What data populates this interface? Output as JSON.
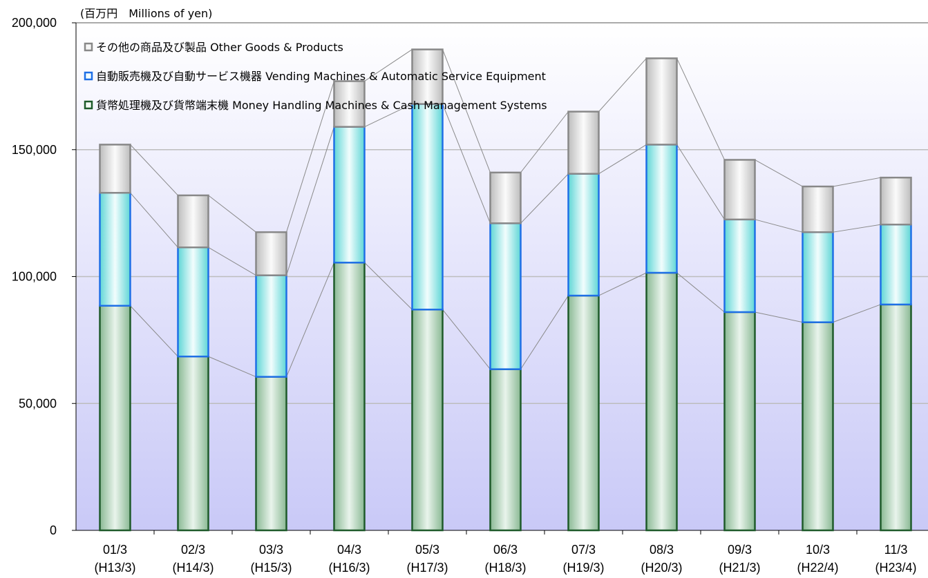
{
  "chart_data": {
    "type": "bar",
    "stacked": true,
    "unit_label": "(百万円　Millions of yen)",
    "categories": [
      [
        "01/3",
        "(H13/3)"
      ],
      [
        "02/3",
        "(H14/3)"
      ],
      [
        "03/3",
        "(H15/3)"
      ],
      [
        "04/3",
        "(H16/3)"
      ],
      [
        "05/3",
        "(H17/3)"
      ],
      [
        "06/3",
        "(H18/3)"
      ],
      [
        "07/3",
        "(H19/3)"
      ],
      [
        "08/3",
        "(H20/3)"
      ],
      [
        "09/3",
        "(H21/3)"
      ],
      [
        "10/3",
        "(H22/4)"
      ],
      [
        "11/3",
        "(H23/4)"
      ]
    ],
    "series": [
      {
        "name": "貨幣処理機及び貨幣端末機 Money Handling Machines & Cash Management Systems",
        "values": [
          88500,
          68500,
          60500,
          105500,
          87000,
          63500,
          92500,
          101500,
          86000,
          82000,
          89000
        ],
        "color": "#1e5a2a"
      },
      {
        "name": "自動販売機及び自動サービス機器 Vending Machines & Automatic Service Equipment",
        "values": [
          44500,
          43000,
          40000,
          53500,
          81000,
          57500,
          48000,
          50500,
          36500,
          35500,
          31500
        ],
        "color": "#1e6fe6"
      },
      {
        "name": "その他の商品及び製品 Other Goods & Products",
        "values": [
          19000,
          20500,
          17000,
          18000,
          21500,
          20000,
          24500,
          34000,
          23500,
          18000,
          18500
        ],
        "color": "#888888"
      }
    ],
    "legend_order": [
      2,
      1,
      0
    ],
    "legend_position": "top-left",
    "yticks": [
      "0",
      "50,000",
      "100,000",
      "150,000",
      "200,000"
    ],
    "ytick_values": [
      0,
      50000,
      100000,
      150000,
      200000
    ],
    "ylim": [
      0,
      200000
    ],
    "grid": true,
    "connector_lines": true
  }
}
